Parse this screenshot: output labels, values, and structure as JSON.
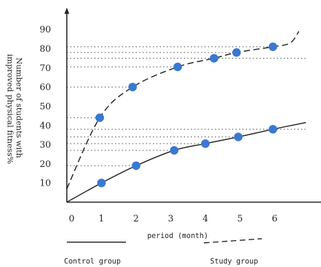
{
  "chart_data": {
    "type": "line",
    "xlabel": "period (month)",
    "ylabel": "Number of students with improved physical fitness%",
    "ylabel_lines": [
      "Number of students with",
      "improved physical fitness%"
    ],
    "xlim": [
      0,
      7
    ],
    "ylim": [
      0,
      98
    ],
    "x_ticks": [
      0,
      1,
      2,
      3,
      4,
      5,
      6
    ],
    "y_ticks": [
      10,
      20,
      30,
      40,
      50,
      60,
      70,
      80,
      90
    ],
    "grid": false,
    "legend": "bottom",
    "series": [
      {
        "name": "Control group",
        "line_style": "solid",
        "points": [
          {
            "x": 1.0,
            "y": 10
          },
          {
            "x": 2.0,
            "y": 19
          },
          {
            "x": 3.1,
            "y": 27
          },
          {
            "x": 4.0,
            "y": 30.5
          },
          {
            "x": 4.95,
            "y": 34
          },
          {
            "x": 5.95,
            "y": 38
          }
        ],
        "curve": [
          {
            "x": 0,
            "y": 0
          },
          {
            "x": 1.0,
            "y": 10
          },
          {
            "x": 2.0,
            "y": 19
          },
          {
            "x": 3.1,
            "y": 27
          },
          {
            "x": 4.0,
            "y": 30.5
          },
          {
            "x": 4.95,
            "y": 34
          },
          {
            "x": 5.95,
            "y": 38
          },
          {
            "x": 6.9,
            "y": 41.5
          }
        ]
      },
      {
        "name": "Study group",
        "line_style": "dashed",
        "points": [
          {
            "x": 0.95,
            "y": 44
          },
          {
            "x": 1.9,
            "y": 60
          },
          {
            "x": 3.2,
            "y": 70.5
          },
          {
            "x": 4.25,
            "y": 75
          },
          {
            "x": 4.9,
            "y": 78
          },
          {
            "x": 5.95,
            "y": 81
          }
        ],
        "curve": [
          {
            "x": 0,
            "y": 7
          },
          {
            "x": 0.95,
            "y": 44
          },
          {
            "x": 1.9,
            "y": 60
          },
          {
            "x": 3.2,
            "y": 70.5
          },
          {
            "x": 4.25,
            "y": 75
          },
          {
            "x": 4.9,
            "y": 78
          },
          {
            "x": 5.95,
            "y": 81
          },
          {
            "x": 6.45,
            "y": 83
          },
          {
            "x": 6.7,
            "y": 89
          }
        ]
      }
    ],
    "reference_lines": [
      {
        "y": 81,
        "x_end": 5.9
      },
      {
        "y": 78,
        "x_end": 4.9
      },
      {
        "y": 75,
        "x_end": 6.9
      },
      {
        "y": 70.5,
        "x_end": 3.2
      },
      {
        "y": 60,
        "x_end": 1.9
      },
      {
        "y": 44,
        "x_end": 0.95
      },
      {
        "y": 38,
        "x_end": 6.9
      },
      {
        "y": 34,
        "x_end": 4.9
      },
      {
        "y": 30.5,
        "x_end": 3.9
      },
      {
        "y": 27,
        "x_end": 3.1
      },
      {
        "y": 19,
        "x_end": 2.0
      }
    ],
    "colors": {
      "marker": "#3a78d2",
      "line": "#222222",
      "reference": "#555555"
    }
  }
}
